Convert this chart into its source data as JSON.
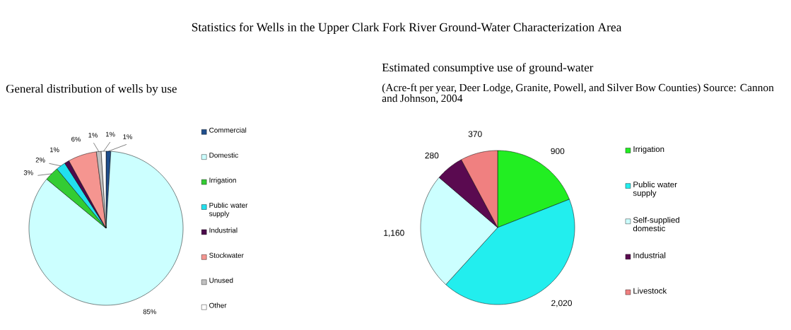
{
  "chart_data": [
    {
      "type": "pie",
      "title": "Statistics for Wells in the Upper Clark Fork River Ground-Water Characterization Area",
      "subtitle": "General distribution of wells by use",
      "categories": [
        "Commercial",
        "Domestic",
        "Irrigation",
        "Public water supply",
        "Industrial",
        "Stockwater",
        "Unused",
        "Other"
      ],
      "values": [
        1,
        85,
        3,
        2,
        1,
        6,
        1,
        1
      ],
      "value_labels": [
        "1%",
        "85%",
        "3%",
        "2%",
        "1%",
        "6%",
        "1%",
        "1%"
      ],
      "colors": [
        "#1f4e8c",
        "#ccffff",
        "#33cc33",
        "#22e0ee",
        "#4b0a4b",
        "#f59590",
        "#c0c0c0",
        "#ffffff"
      ],
      "legend": "right"
    },
    {
      "type": "pie",
      "title": "Estimated consumptive use of ground-water",
      "subtitle": "(Acre-ft per year, Deer Lodge, Granite, Powell, and Silver Bow Counties) Source: Cannon and Johnson, 2004",
      "categories": [
        "Irrigation",
        "Public water supply",
        "Self-supplied domestic",
        "Industrial",
        "Livestock"
      ],
      "values": [
        900,
        2020,
        1160,
        280,
        370
      ],
      "value_labels": [
        "900",
        "2,020",
        "1,160",
        "280",
        "370"
      ],
      "colors": [
        "#22ee22",
        "#22eeee",
        "#ccffff",
        "#5a0a50",
        "#f08080"
      ],
      "legend": "right"
    }
  ]
}
